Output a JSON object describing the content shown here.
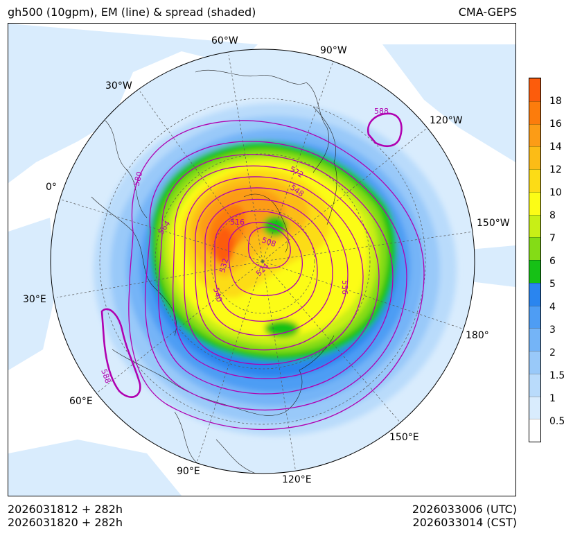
{
  "title_left": "gh500 (10gpm), EM (line) & spread (shaded)",
  "title_right": "CMA-GEPS",
  "footer": {
    "init_utc": "2026031812 + 282h",
    "init_cst": "2026031820 + 282h",
    "valid_utc": "2026033006 (UTC)",
    "valid_cst": "2026033014 (CST)"
  },
  "longitude_labels": [
    "60°W",
    "90°W",
    "30°W",
    "120°W",
    "0°",
    "150°W",
    "30°E",
    "180°",
    "60°E",
    "150°E",
    "90°E",
    "120°E"
  ],
  "contour_labels": [
    "588",
    "572",
    "548",
    "580",
    "564",
    "516",
    "508",
    "532",
    "524",
    "540",
    "556",
    "588"
  ],
  "colorbar": {
    "labels": [
      "18",
      "16",
      "14",
      "12",
      "10",
      "8",
      "7",
      "6",
      "5",
      "4",
      "3",
      "2",
      "1.5",
      "1",
      "0.5"
    ],
    "colors": [
      "#ffffff",
      "#d9ecfd",
      "#b9dbfb",
      "#99c9f9",
      "#74b4f7",
      "#4e9df4",
      "#2a85ef",
      "#16c116",
      "#84dc16",
      "#c8ef16",
      "#fcfc16",
      "#fcdc16",
      "#fcbc16",
      "#fc9c16",
      "#fc7c0c",
      "#fc5c0c"
    ]
  },
  "colors": {
    "contour": "#b000b0",
    "frame": "#000000"
  }
}
